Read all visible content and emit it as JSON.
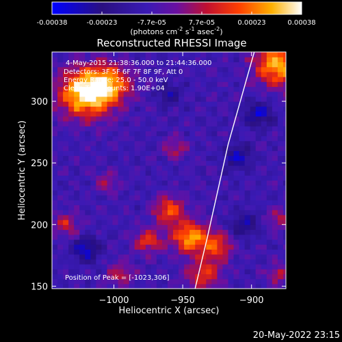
{
  "colorbar": {
    "ticks": [
      "-0.00038",
      "-0.00023",
      "-7.7e-05",
      "7.7e-05",
      "0.00023",
      "0.00038"
    ],
    "unit_main": "(photons cm",
    "unit_exp1": "-2",
    "unit_mid": " s",
    "unit_exp2": "-1",
    "unit_mid2": " asec",
    "unit_exp3": "-2",
    "unit_end": ")",
    "range": [
      -0.00038,
      0.00038
    ]
  },
  "chart_data": {
    "type": "heatmap",
    "title": "Reconstructed RHESSI Image",
    "xlabel": "Heliocentric X (arcsec)",
    "ylabel": "Heliocentric Y (arcsec)",
    "xlim": [
      -1045,
      -875
    ],
    "ylim": [
      148,
      340
    ],
    "xticks": [
      -1000,
      -950,
      -900
    ],
    "xtick_labels": [
      "−1000",
      "−950",
      "−900"
    ],
    "yticks": [
      150,
      200,
      250,
      300
    ],
    "ytick_labels": [
      "150",
      "200",
      "250",
      "300"
    ],
    "annotations": [
      "4-May-2015 21:38:36.000 to 21:44:36.000",
      "Detectors: 3F 5F 6F 7F 8F 9F, Att 0",
      "Energy Range: 25.0 - 50.0 keV",
      "Clean    Total counts: 1.90E+04"
    ],
    "peak_label": "Position of Peak = [-1023,306]",
    "peak": [
      -1023,
      306
    ],
    "sources": [
      {
        "x": -1020,
        "y": 307,
        "sigma": 14,
        "amp": 1.0
      },
      {
        "x": -1002,
        "y": 315,
        "sigma": 11,
        "amp": 0.55
      },
      {
        "x": -880,
        "y": 330,
        "sigma": 12,
        "amp": 0.85
      },
      {
        "x": -960,
        "y": 212,
        "sigma": 8,
        "amp": 0.6
      },
      {
        "x": -945,
        "y": 190,
        "sigma": 9,
        "amp": 0.75
      },
      {
        "x": -975,
        "y": 187,
        "sigma": 7,
        "amp": 0.5
      },
      {
        "x": -925,
        "y": 183,
        "sigma": 8,
        "amp": 0.55
      },
      {
        "x": -1035,
        "y": 200,
        "sigma": 7,
        "amp": 0.4
      },
      {
        "x": -935,
        "y": 160,
        "sigma": 9,
        "amp": 0.5
      },
      {
        "x": -995,
        "y": 160,
        "sigma": 7,
        "amp": 0.35
      },
      {
        "x": -955,
        "y": 262,
        "sigma": 6,
        "amp": 0.35
      },
      {
        "x": -1005,
        "y": 235,
        "sigma": 6,
        "amp": 0.3
      },
      {
        "x": -880,
        "y": 205,
        "sigma": 6,
        "amp": 0.35
      },
      {
        "x": -880,
        "y": 160,
        "sigma": 6,
        "amp": 0.35
      }
    ],
    "negatives": [
      {
        "x": -895,
        "y": 290,
        "sigma": 7,
        "amp": -0.5
      },
      {
        "x": -1020,
        "y": 180,
        "sigma": 7,
        "amp": -0.5
      },
      {
        "x": -910,
        "y": 255,
        "sigma": 7,
        "amp": -0.45
      },
      {
        "x": -905,
        "y": 200,
        "sigma": 7,
        "amp": -0.4
      },
      {
        "x": -960,
        "y": 305,
        "sigma": 6,
        "amp": -0.35
      }
    ],
    "limb_line": [
      [
        -941,
        148
      ],
      [
        -932,
        190
      ],
      [
        -917,
        265
      ],
      [
        -898,
        340
      ]
    ]
  },
  "footer": {
    "timestamp": "20-May-2022 23:15"
  }
}
